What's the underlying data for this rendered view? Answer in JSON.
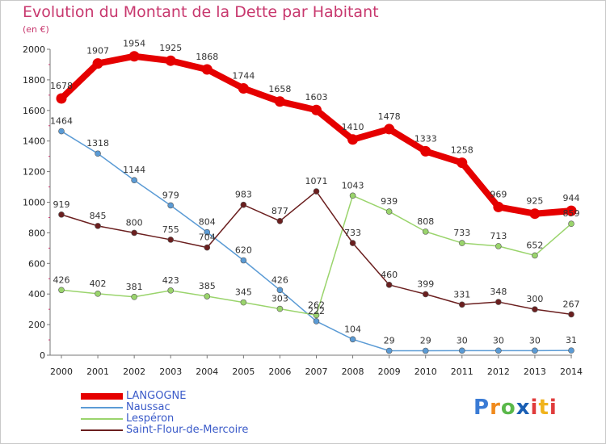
{
  "chart_data": {
    "type": "line",
    "title": "Evolution du Montant de la Dette par Habitant",
    "subtitle": "(en €)",
    "xlabel": "",
    "ylabel": "",
    "x": [
      2000,
      2001,
      2002,
      2003,
      2004,
      2005,
      2006,
      2007,
      2008,
      2009,
      2010,
      2011,
      2012,
      2013,
      2014
    ],
    "ylim": [
      0,
      2000
    ],
    "yticks": [
      0,
      200,
      400,
      600,
      800,
      1000,
      1200,
      1400,
      1600,
      1800,
      2000
    ],
    "grid": false,
    "legend_position": "bottom-left",
    "series": [
      {
        "name": "LANGOGNE",
        "color": "#e50000",
        "values": [
          1678,
          1907,
          1954,
          1925,
          1868,
          1744,
          1658,
          1603,
          1410,
          1478,
          1333,
          1258,
          969,
          925,
          944
        ]
      },
      {
        "name": "Naussac",
        "color": "#5b9bd5",
        "values": [
          1464,
          1318,
          1144,
          979,
          804,
          620,
          426,
          222,
          104,
          29,
          29,
          30,
          30,
          30,
          31
        ]
      },
      {
        "name": "Lespéron",
        "color": "#9ad46c",
        "values": [
          426,
          402,
          381,
          423,
          385,
          345,
          303,
          262,
          1043,
          939,
          808,
          733,
          713,
          652,
          859
        ]
      },
      {
        "name": "Saint-Flour-de-Mercoire",
        "color": "#6b1f1f",
        "values": [
          919,
          845,
          800,
          755,
          704,
          983,
          877,
          1071,
          733,
          460,
          399,
          331,
          348,
          300,
          267
        ]
      }
    ]
  },
  "branding": {
    "logo_letters": [
      "P",
      "r",
      "o",
      "x",
      "i",
      "t",
      "i"
    ]
  }
}
